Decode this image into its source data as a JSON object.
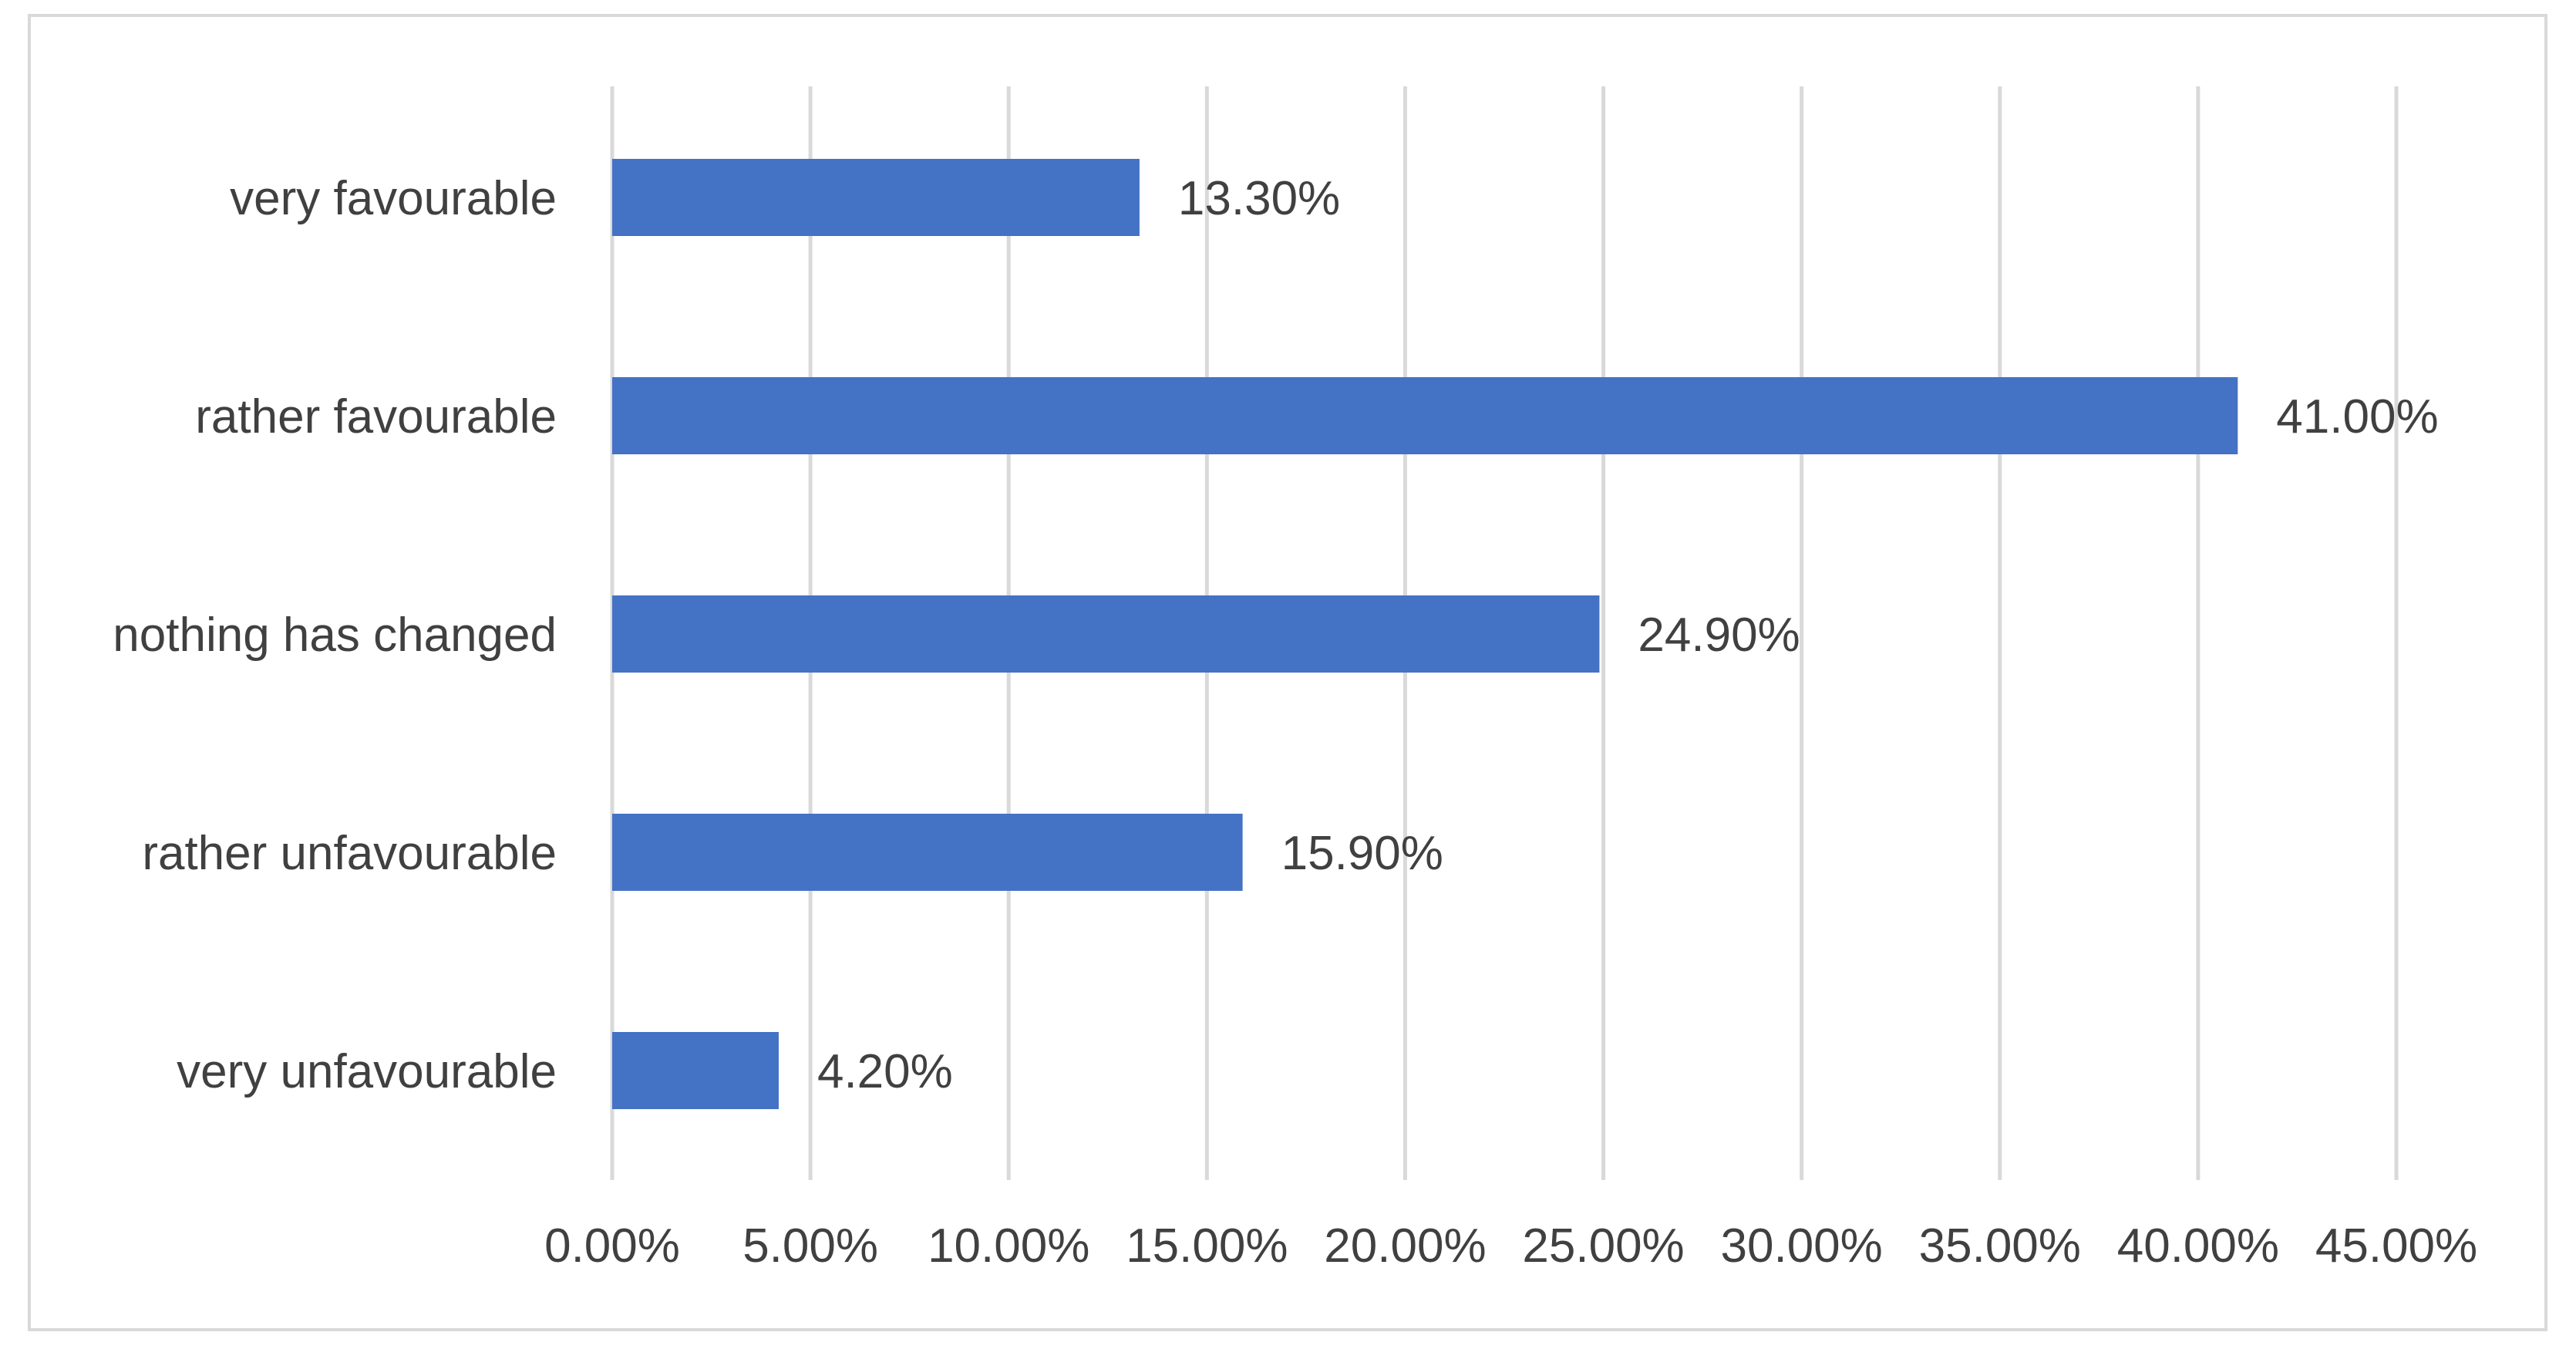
{
  "chart_data": {
    "type": "bar",
    "orientation": "horizontal",
    "categories": [
      "very favourable",
      "rather favourable",
      "nothing has changed",
      "rather unfavourable",
      "very unfavourable"
    ],
    "values": [
      13.3,
      41.0,
      24.9,
      15.9,
      4.2
    ],
    "data_labels": [
      "13.30%",
      "41.00%",
      "24.90%",
      "15.90%",
      "4.20%"
    ],
    "x_ticks": [
      0,
      5,
      10,
      15,
      20,
      25,
      30,
      35,
      40,
      45
    ],
    "x_tick_labels": [
      "0.00%",
      "5.00%",
      "10.00%",
      "15.00%",
      "20.00%",
      "25.00%",
      "30.00%",
      "35.00%",
      "40.00%",
      "45.00%"
    ],
    "xlim": [
      0,
      45
    ],
    "title": "",
    "xlabel": "",
    "ylabel": "",
    "grid": true,
    "legend": "none",
    "bar_color": "#4472c4",
    "grid_color": "#d9d9d9",
    "text_color": "#404040"
  }
}
